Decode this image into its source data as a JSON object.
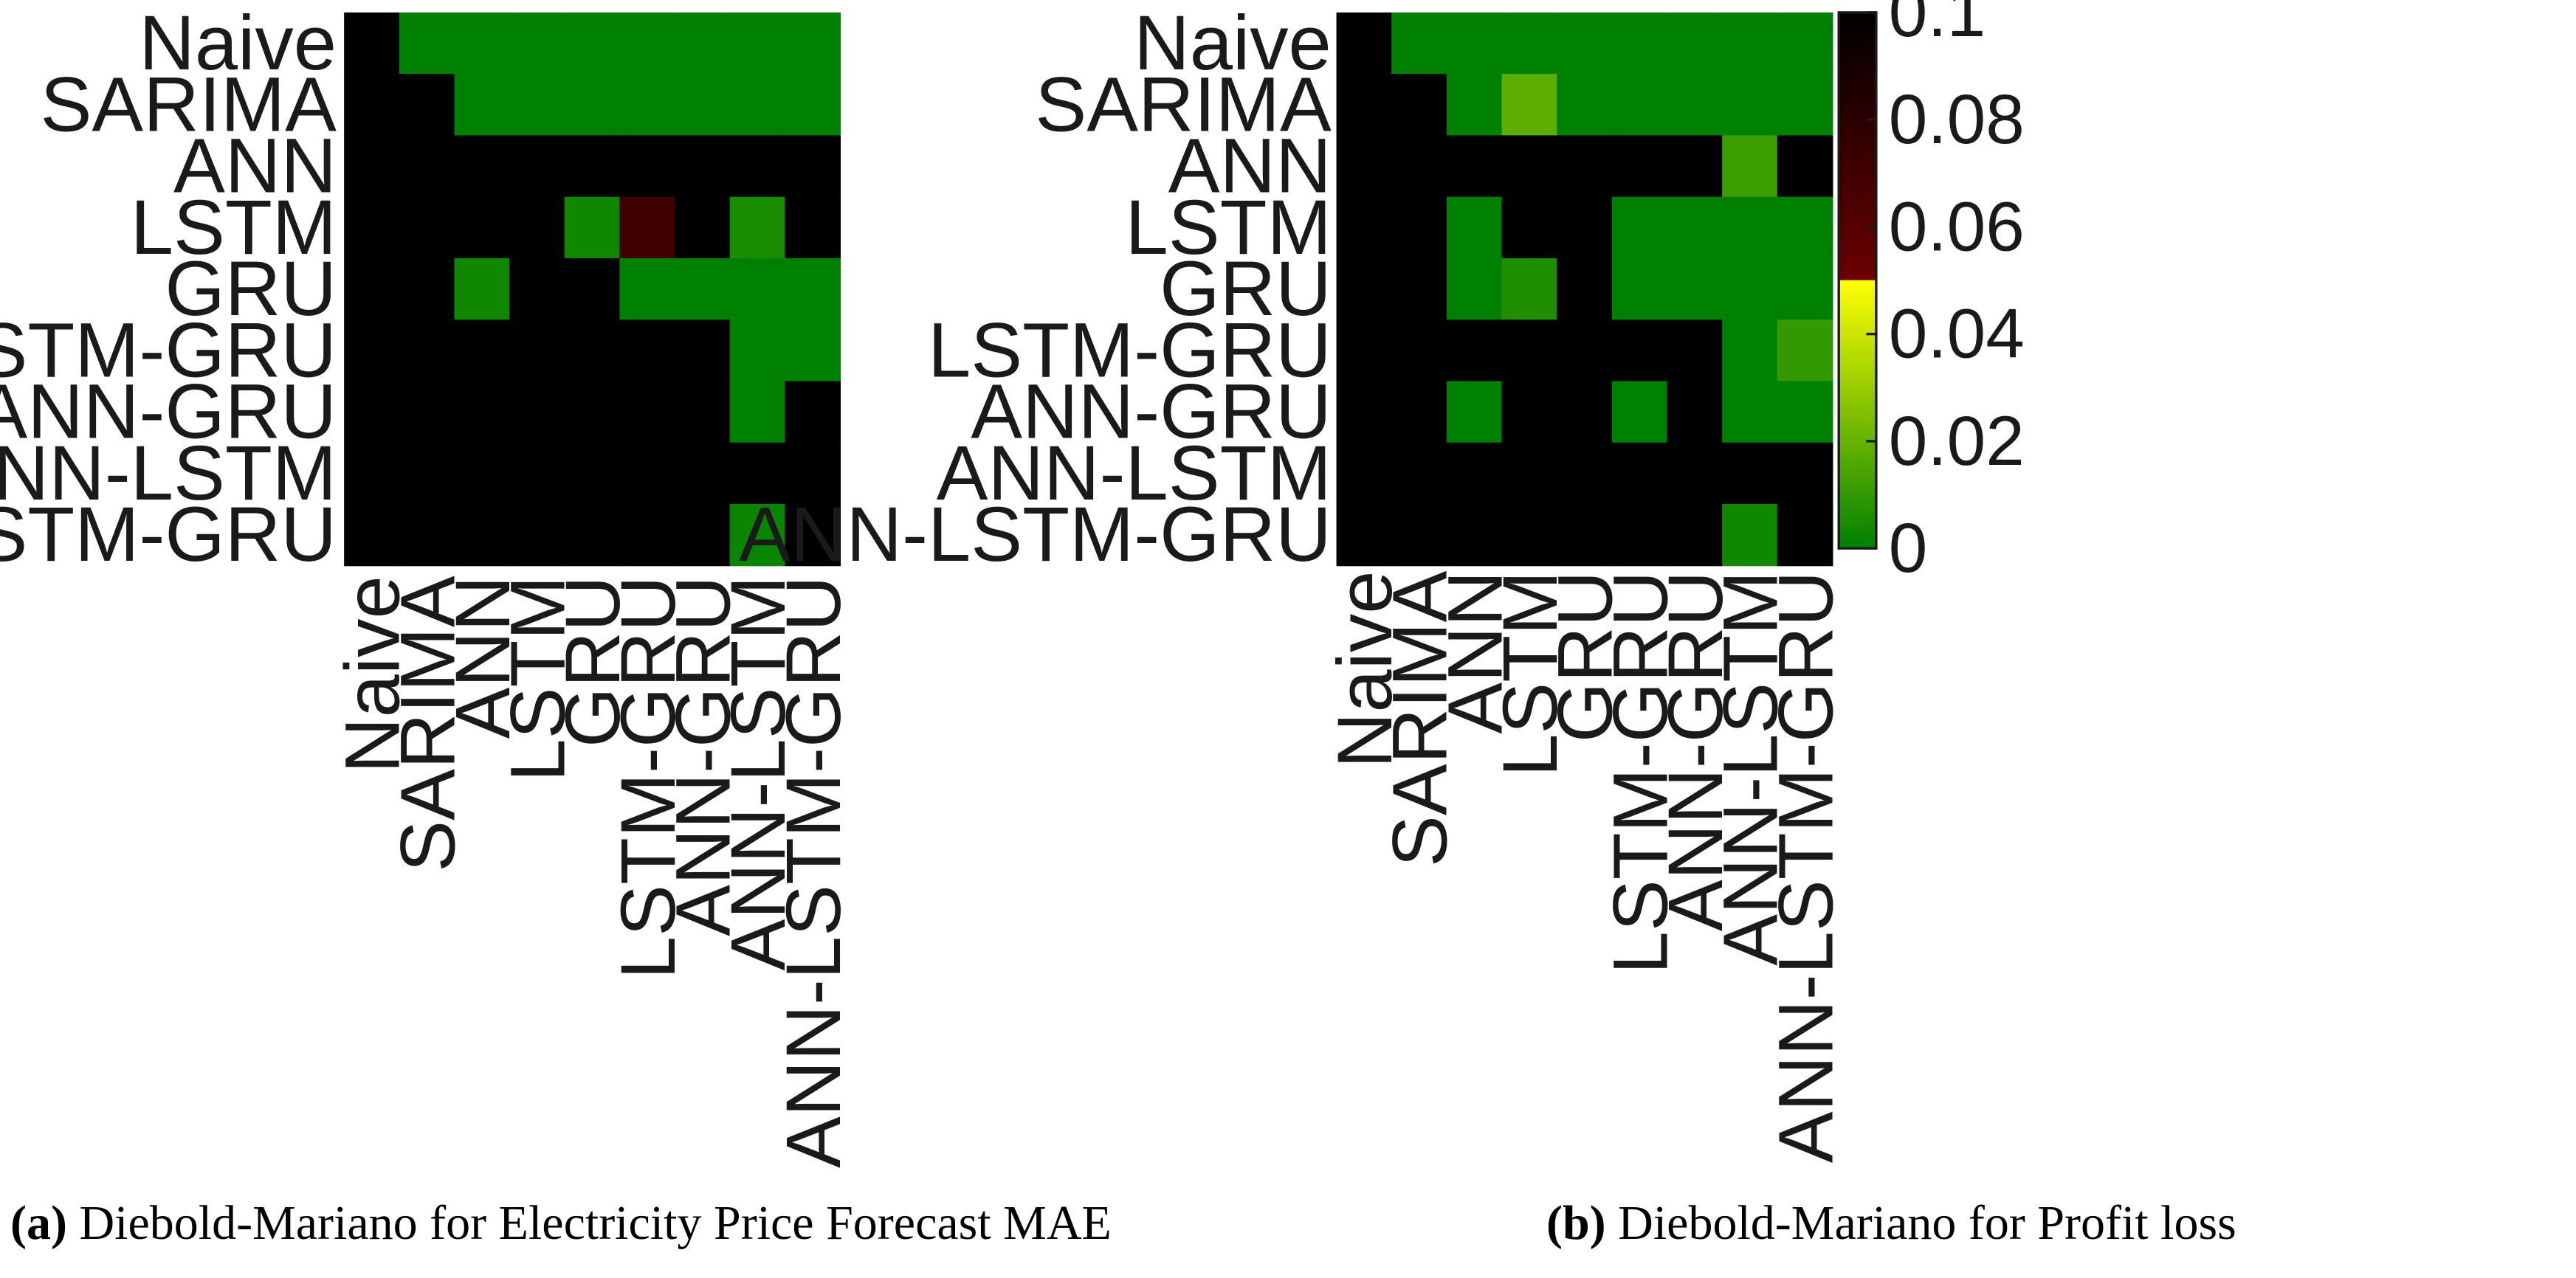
{
  "chart_data": [
    {
      "type": "heatmap",
      "title": "",
      "caption_tag": "(a)",
      "caption_text": "Diebold-Mariano for Electricity Price Forecast MAE",
      "rows": [
        "Naive",
        "SARIMA",
        "ANN",
        "LSTM",
        "GRU",
        "LSTM-GRU",
        "ANN-GRU",
        "ANN-LSTM",
        "ANN-LSTM-GRU"
      ],
      "cols": [
        "Naive",
        "SARIMA",
        "ANN",
        "LSTM",
        "GRU",
        "LSTM-GRU",
        "ANN-GRU",
        "ANN-LSTM",
        "ANN-LSTM-GRU"
      ],
      "color_range": [
        0,
        0.1
      ],
      "values": [
        [
          0.1,
          0,
          0,
          0,
          0,
          0,
          0,
          0,
          0
        ],
        [
          0.1,
          0.1,
          0,
          0,
          0,
          0,
          0,
          0,
          0
        ],
        [
          0.1,
          0.1,
          0.1,
          0.1,
          0.1,
          0.1,
          0.1,
          0.1,
          0.1
        ],
        [
          0.1,
          0.1,
          0.1,
          0.1,
          0.003,
          0.07,
          0.1,
          0.005,
          0.1
        ],
        [
          0.1,
          0.1,
          0.003,
          0.1,
          0.1,
          0,
          0,
          0,
          0
        ],
        [
          0.1,
          0.1,
          0.1,
          0.1,
          0.1,
          0.1,
          0.1,
          0,
          0
        ],
        [
          0.1,
          0.1,
          0.1,
          0.1,
          0.1,
          0.1,
          0.1,
          0,
          0.1
        ],
        [
          0.1,
          0.1,
          0.1,
          0.1,
          0.1,
          0.1,
          0.1,
          0.1,
          0.1
        ],
        [
          0.1,
          0.1,
          0.1,
          0.1,
          0.1,
          0.1,
          0.1,
          0.002,
          0.1
        ]
      ]
    },
    {
      "type": "heatmap",
      "title": "",
      "caption_tag": "(b)",
      "caption_text": "Diebold-Mariano for Profit loss",
      "rows": [
        "Naive",
        "SARIMA",
        "ANN",
        "LSTM",
        "GRU",
        "LSTM-GRU",
        "ANN-GRU",
        "ANN-LSTM",
        "ANN-LSTM-GRU"
      ],
      "cols": [
        "Naive",
        "SARIMA",
        "ANN",
        "LSTM",
        "GRU",
        "LSTM-GRU",
        "ANN-GRU",
        "ANN-LSTM",
        "ANN-LSTM-GRU"
      ],
      "color_range": [
        0,
        0.1
      ],
      "values": [
        [
          0.1,
          0,
          0,
          0,
          0,
          0,
          0,
          0,
          0
        ],
        [
          0.1,
          0.1,
          0,
          0.018,
          0,
          0,
          0,
          0,
          0
        ],
        [
          0.1,
          0.1,
          0.1,
          0.1,
          0.1,
          0.1,
          0.1,
          0.012,
          0.1
        ],
        [
          0.1,
          0.1,
          0,
          0.1,
          0.1,
          0,
          0,
          0,
          0
        ],
        [
          0.1,
          0.1,
          0,
          0.006,
          0.1,
          0,
          0,
          0,
          0
        ],
        [
          0.1,
          0.1,
          0.1,
          0.1,
          0.1,
          0.1,
          0.1,
          0,
          0.01
        ],
        [
          0.1,
          0.1,
          0,
          0.1,
          0.1,
          0,
          0.1,
          0,
          0
        ],
        [
          0.1,
          0.1,
          0.1,
          0.1,
          0.1,
          0.1,
          0.1,
          0.1,
          0.1
        ],
        [
          0.1,
          0.1,
          0.1,
          0.1,
          0.1,
          0.1,
          0.1,
          0.003,
          0.1
        ]
      ],
      "colorbar": {
        "ticks": [
          0,
          0.02,
          0.04,
          0.06,
          0.08,
          0.1
        ],
        "tick_labels": [
          "0",
          "0.02",
          "0.04",
          "0.06",
          "0.08",
          "0.1"
        ],
        "stops": [
          {
            "value": 0,
            "color": "#008000"
          },
          {
            "value": 0.05,
            "color": "#ffff00"
          },
          {
            "value": 0.0501,
            "color": "#6b0000"
          },
          {
            "value": 0.1,
            "color": "#000000"
          }
        ]
      }
    }
  ]
}
